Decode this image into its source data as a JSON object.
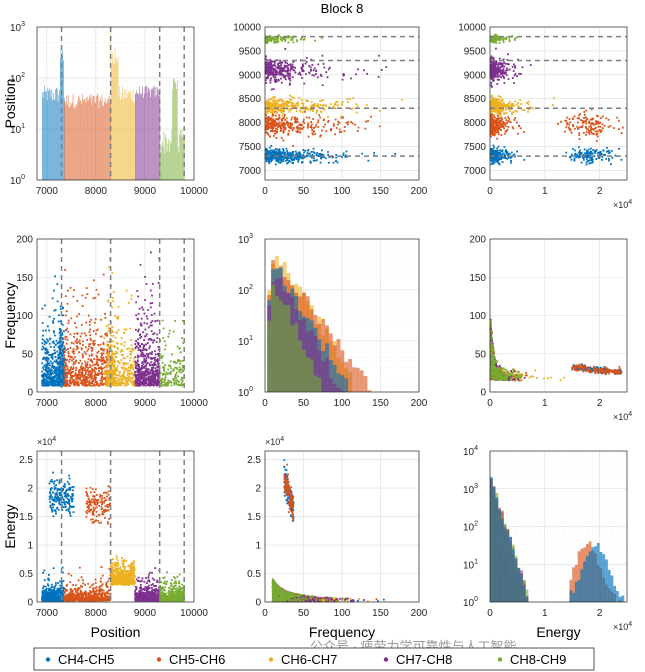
{
  "chart_data": {
    "type": "scatter-matrix",
    "title": "Block 8",
    "variables": [
      "Position",
      "Frequency",
      "Energy"
    ],
    "series": [
      {
        "name": "CH4-CH5",
        "color": "#0072BD",
        "position_range": [
          6900,
          7350
        ],
        "position_mid": 7300
      },
      {
        "name": "CH5-CH6",
        "color": "#D95319",
        "position_range": [
          7350,
          8300
        ],
        "position_mid": 8100
      },
      {
        "name": "CH6-CH7",
        "color": "#EDB120",
        "position_range": [
          8300,
          8800
        ],
        "position_mid": 8300
      },
      {
        "name": "CH7-CH8",
        "color": "#7E2F8E",
        "position_range": [
          8800,
          9300
        ],
        "position_mid": 9300
      },
      {
        "name": "CH8-CH9",
        "color": "#77AC30",
        "position_range": [
          9300,
          9800
        ],
        "position_mid": 9800
      }
    ],
    "boundaries": [
      7300,
      8300,
      9300,
      9800
    ],
    "axes": {
      "Position": {
        "range": [
          6800,
          10000
        ],
        "ticks": [
          "7000",
          "8000",
          "9000",
          "10000"
        ],
        "hist_ticks": [
          "10^0",
          "10^1",
          "10^2",
          "10^3"
        ]
      },
      "Frequency": {
        "range": [
          0,
          200
        ],
        "ticks": [
          "0",
          "50",
          "100",
          "150",
          "200"
        ],
        "hist_ticks": [
          "10^0",
          "10^1",
          "10^2",
          "10^3"
        ]
      },
      "Energy": {
        "range": [
          0,
          25000
        ],
        "ticks": [
          "0",
          "0.5",
          "1",
          "1.5",
          "2",
          "2.5"
        ],
        "ticks_x": [
          "0",
          "1",
          "2"
        ],
        "exponent": "×10^4",
        "hist_ticks": [
          "10^0",
          "10^1",
          "10^2",
          "10^3",
          "10^4"
        ]
      }
    },
    "position_ticks_y": [
      "7000",
      "7500",
      "8000",
      "8500",
      "9000",
      "9500",
      "10000"
    ]
  },
  "labels": {
    "row1": "Position",
    "row2": "Frequency",
    "row3": "Energy",
    "col1": "Position",
    "col2": "Frequency",
    "col3": "Energy"
  },
  "watermark": "公众号 · 疲劳力学可靠性与人工智能"
}
